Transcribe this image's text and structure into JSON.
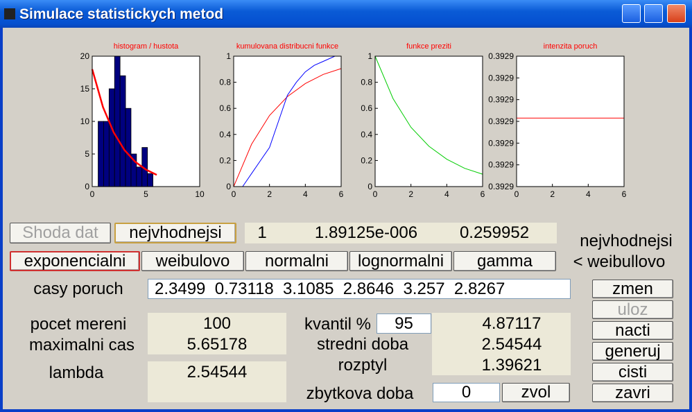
{
  "window": {
    "title": "Simulace statistickych metod"
  },
  "plots": [
    {
      "type": "histogram",
      "title": "histogram / hustota",
      "xlim": [
        0,
        10
      ],
      "xticks": [
        0,
        5,
        10
      ],
      "ylim": [
        0,
        20
      ],
      "yticks": [
        0,
        5,
        10,
        15,
        20
      ],
      "bins": [
        0.55,
        1.06,
        1.57,
        2.08,
        2.59,
        3.1,
        3.61,
        4.12,
        4.63,
        5.14,
        5.65
      ],
      "counts": [
        10,
        10,
        15,
        20,
        17,
        12,
        5,
        3,
        6,
        2
      ],
      "color": "#00007f",
      "series": [
        {
          "color": "#ff0000",
          "x": [
            0,
            1,
            2,
            3,
            4,
            5,
            6
          ],
          "values": [
            18,
            12.2,
            8.3,
            5.6,
            3.8,
            2.6,
            1.8
          ]
        }
      ]
    },
    {
      "type": "line",
      "title": "kumulovana distribucni funkce",
      "xlim": [
        0,
        6
      ],
      "xticks": [
        0,
        2,
        4,
        6
      ],
      "ylim": [
        0,
        1
      ],
      "yticks": [
        0,
        0.2,
        0.4,
        0.6,
        0.8,
        1
      ],
      "series": [
        {
          "color": "#ff0000",
          "x": [
            0,
            1,
            2,
            3,
            4,
            5,
            6
          ],
          "values": [
            0,
            0.325,
            0.545,
            0.69,
            0.79,
            0.86,
            0.905
          ]
        },
        {
          "color": "#0000ff",
          "x": [
            0.5,
            1,
            1.5,
            2,
            2.5,
            3,
            3.5,
            4,
            4.5,
            5,
            5.65,
            6
          ],
          "values": [
            0,
            0.1,
            0.2,
            0.3,
            0.5,
            0.7,
            0.8,
            0.88,
            0.93,
            0.96,
            1,
            1
          ]
        }
      ]
    },
    {
      "type": "line",
      "title": "funkce preziti",
      "xlim": [
        0,
        6
      ],
      "xticks": [
        0,
        2,
        4,
        6
      ],
      "ylim": [
        0,
        1
      ],
      "yticks": [
        0,
        0.2,
        0.4,
        0.6,
        0.8,
        1
      ],
      "series": [
        {
          "color": "#00cc00",
          "x": [
            0,
            1,
            2,
            3,
            4,
            5,
            6
          ],
          "values": [
            1,
            0.675,
            0.455,
            0.31,
            0.21,
            0.14,
            0.095
          ]
        }
      ]
    },
    {
      "type": "line",
      "title": "intenzita poruch",
      "xlim": [
        0,
        6
      ],
      "xticks": [
        0,
        2,
        4,
        6
      ],
      "ylim": [
        0.39286,
        0.39298
      ],
      "yticks": [
        {
          "value": 0.39286,
          "label": "0.3929"
        },
        {
          "value": 0.39288,
          "label": "0.3929"
        },
        {
          "value": 0.3929,
          "label": "0.3929"
        },
        {
          "value": 0.39292,
          "label": "0.3929"
        },
        {
          "value": 0.39294,
          "label": "0.3929"
        },
        {
          "value": 0.39296,
          "label": "0.3929"
        },
        {
          "value": 0.39298,
          "label": "0.3929"
        }
      ],
      "series": [
        {
          "color": "#ff0000",
          "x": [
            0,
            6
          ],
          "values": [
            0.392923,
            0.392923
          ]
        }
      ]
    }
  ],
  "controls": {
    "shoda_dat": "Shoda dat",
    "best_button": "nejvhodnejsi",
    "result_values": [
      "1",
      "1.89125e-006",
      "0.259952"
    ],
    "best_note": [
      "nejvhodnejsi",
      "< weibullovo"
    ],
    "distributions": [
      "exponencialni",
      "weibulovo",
      "normalni",
      "lognormalni",
      "gamma"
    ],
    "casy_poruch": {
      "label": "casy poruch",
      "value": "2.3499  0.73118  3.1085  2.8646  3.257  2.8267"
    },
    "side_buttons": [
      "zmen",
      "uloz",
      "nacti",
      "generuj",
      "cisti",
      "zavri"
    ],
    "pocet_mereni": {
      "label": "pocet mereni",
      "value": "100"
    },
    "maximalni_cas": {
      "label": "maximalni cas",
      "value": "5.65178"
    },
    "lambda": {
      "label": "lambda",
      "value": "2.54544"
    },
    "kvantil": {
      "label": "kvantil %",
      "value": "95"
    },
    "kvantil_result": "4.87117",
    "stredni_doba": {
      "label": "stredni doba",
      "value": "2.54544"
    },
    "rozptyl": {
      "label": "rozptyl",
      "value": "1.39621"
    },
    "zbytkova_doba": {
      "label": "zbytkova doba",
      "value": "0",
      "button": "zvol"
    }
  }
}
